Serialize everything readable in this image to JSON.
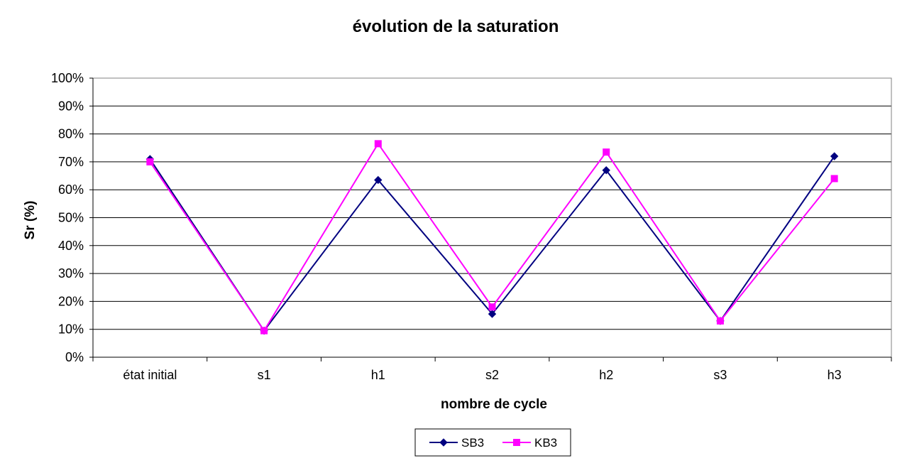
{
  "chart_data": {
    "type": "line",
    "title": "évolution de la saturation",
    "xlabel": "nombre de cycle",
    "ylabel": "Sr (%)",
    "categories": [
      "état initial",
      "s1",
      "h1",
      "s2",
      "h2",
      "s3",
      "h3"
    ],
    "y_ticks": [
      "0%",
      "10%",
      "20%",
      "30%",
      "40%",
      "50%",
      "60%",
      "70%",
      "80%",
      "90%",
      "100%"
    ],
    "ylim": [
      0,
      100
    ],
    "y_unit": "%",
    "grid": "horizontal",
    "legend_position": "bottom",
    "series": [
      {
        "name": "SB3",
        "color": "#000080",
        "marker": "diamond",
        "values": [
          71,
          9.5,
          63.5,
          15.5,
          67,
          13,
          72
        ]
      },
      {
        "name": "KB3",
        "color": "#ff00ff",
        "marker": "square",
        "values": [
          70,
          9.5,
          76.5,
          18,
          73.5,
          13,
          64
        ]
      }
    ]
  }
}
